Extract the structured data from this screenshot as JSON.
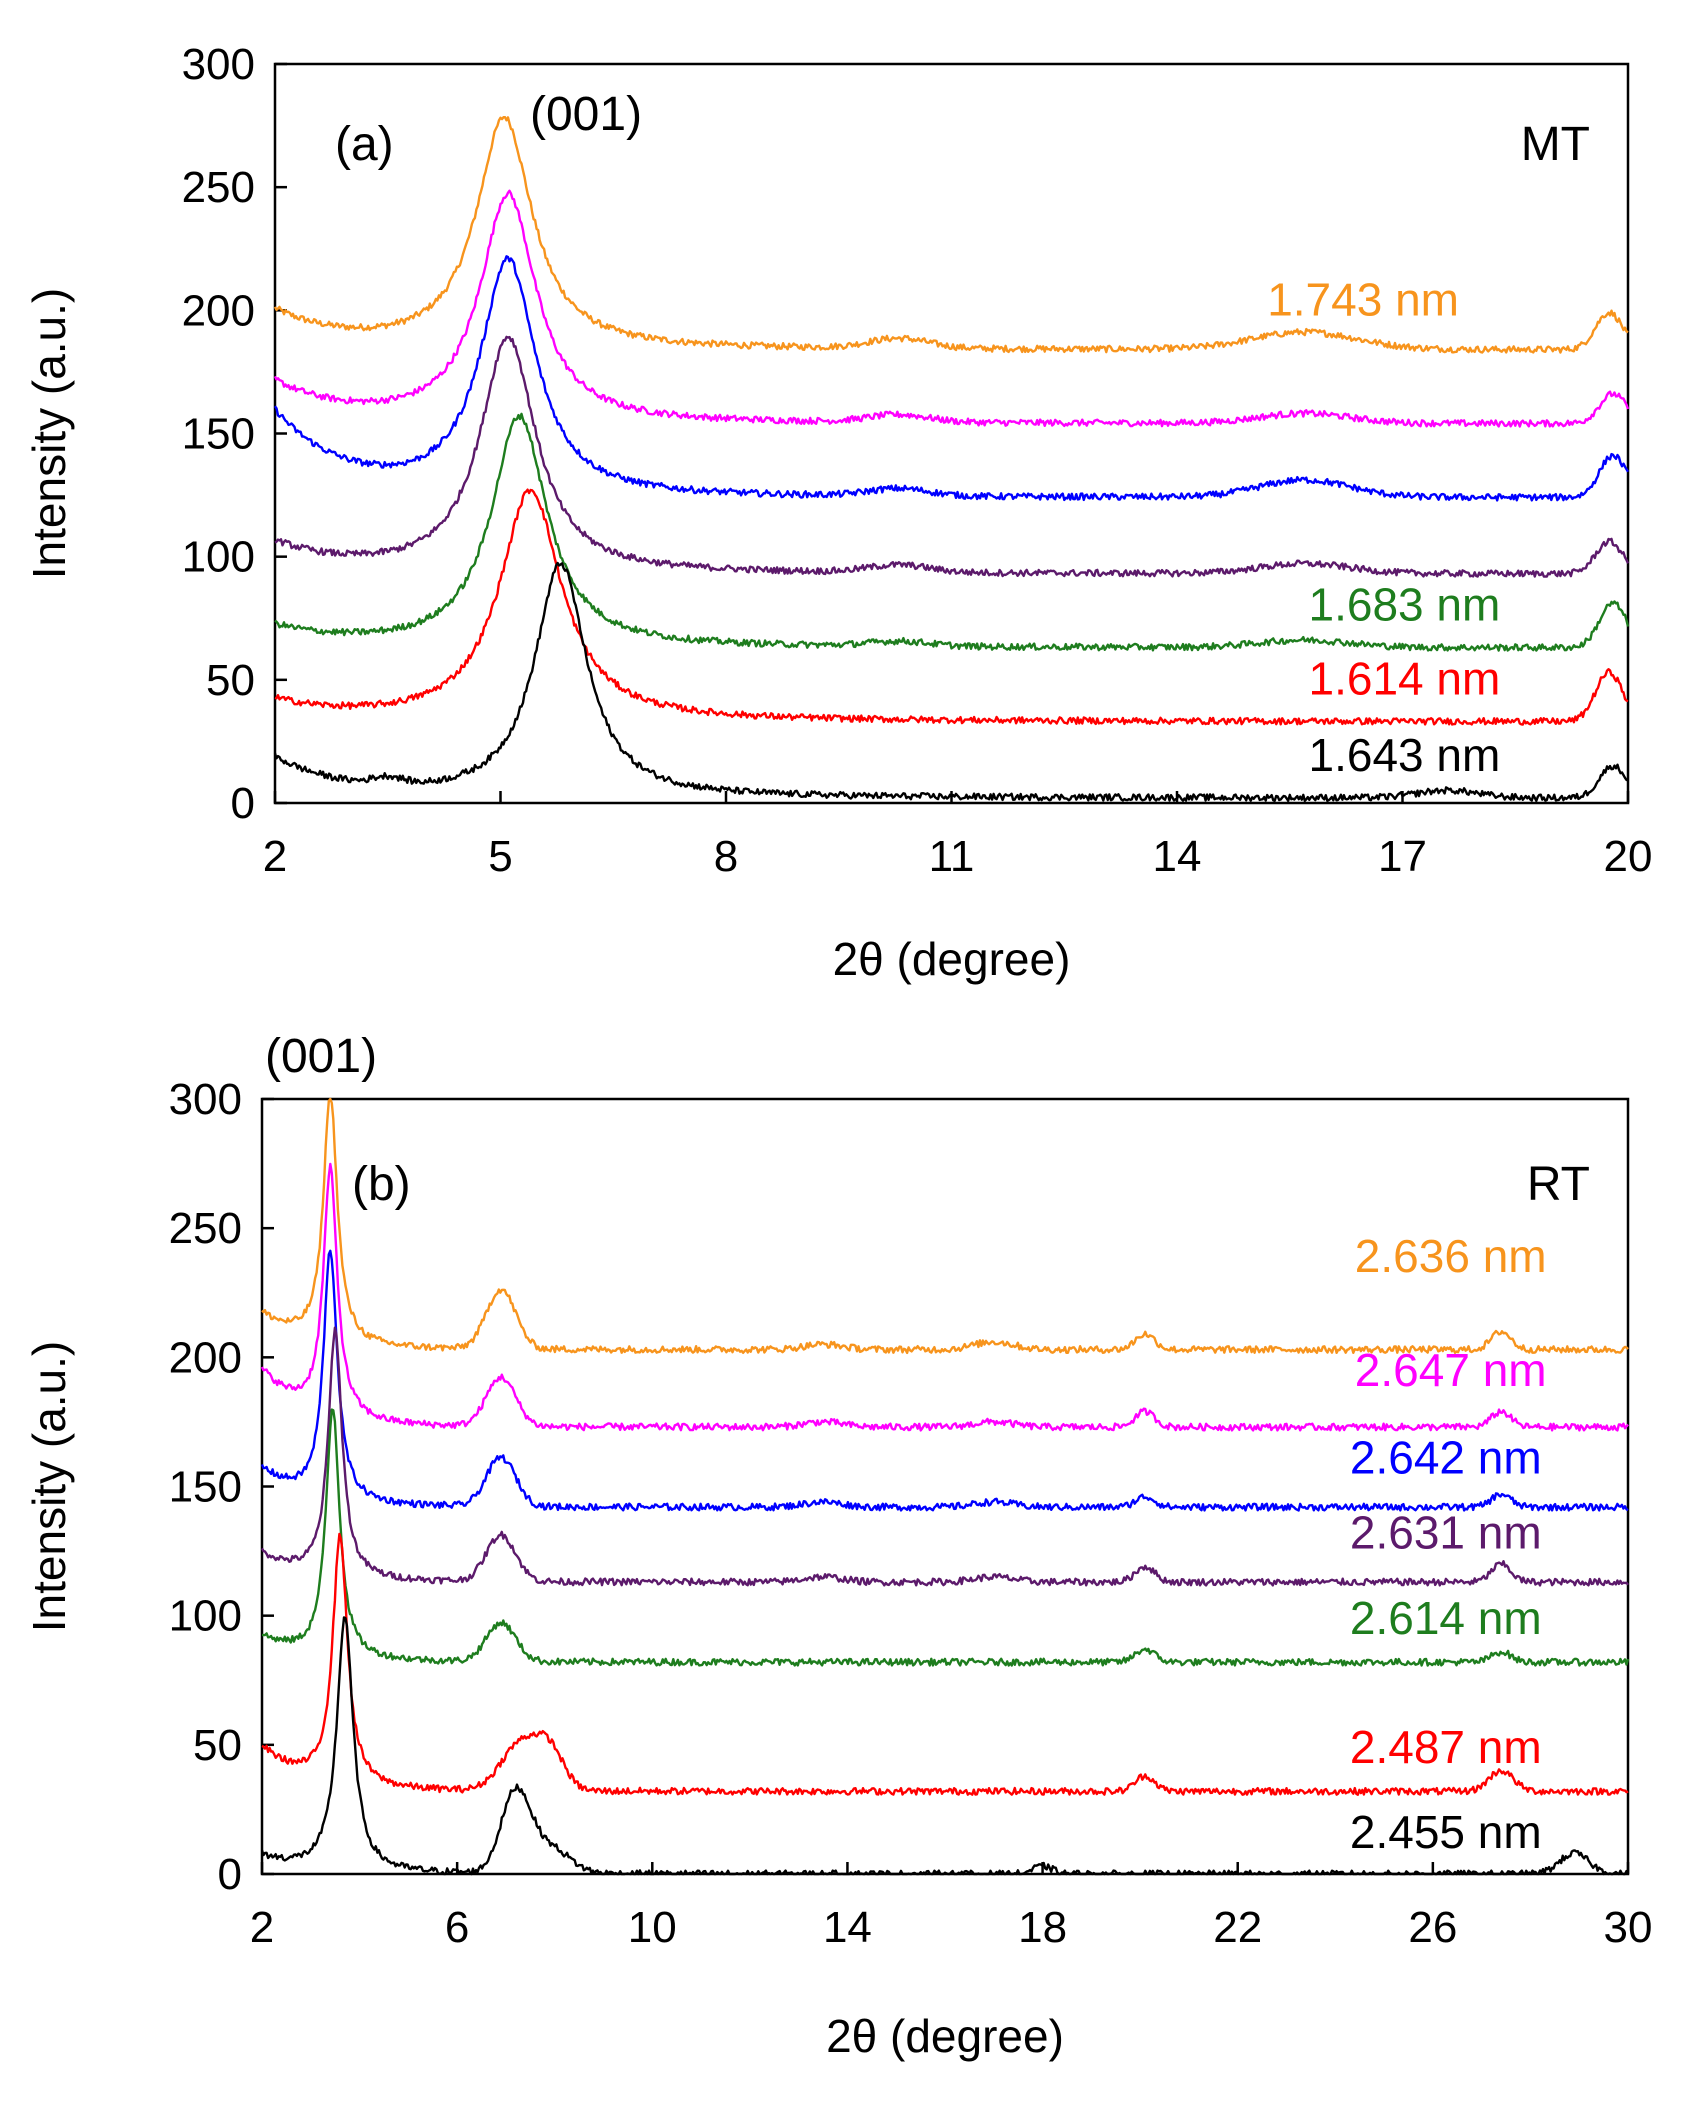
{
  "figure": {
    "colors": {
      "orange": "#f7941d",
      "magenta": "#ff00ff",
      "blue": "#0000ff",
      "purple": "#5c1a6b",
      "green": "#1e7d1e",
      "red": "#ff0000",
      "black": "#000000"
    }
  },
  "chart_data": [
    {
      "type": "line",
      "panel_label": "(a)",
      "corner_label": "MT",
      "peak_annotation": "(001)",
      "xlabel": "2θ (degree)",
      "ylabel": "Intensity (a.u.)",
      "xlim": [
        2,
        20
      ],
      "ylim": [
        0,
        300
      ],
      "xticks": [
        "2",
        "5",
        "8",
        "11",
        "14",
        "17",
        "20"
      ],
      "yticks": [
        "0",
        "50",
        "100",
        "150",
        "200",
        "250",
        "300"
      ],
      "grid": false,
      "series": [
        {
          "color": "#f7941d",
          "baseline": 184,
          "start": 201,
          "peak_x": 5.05,
          "peak_y": 278,
          "width": 0.45,
          "bumps": [
            [
              10.3,
              4,
              0.4
            ],
            [
              15.7,
              7,
              0.7
            ],
            [
              19.75,
              15,
              0.18
            ]
          ]
        },
        {
          "color": "#ff00ff",
          "baseline": 154,
          "start": 172,
          "peak_x": 5.1,
          "peak_y": 247,
          "width": 0.45,
          "bumps": [
            [
              10.3,
              3,
              0.4
            ],
            [
              15.7,
              4,
              0.6
            ],
            [
              19.8,
              12,
              0.18
            ]
          ]
        },
        {
          "color": "#0000ff",
          "baseline": 124,
          "start": 160,
          "peak_x": 5.1,
          "peak_y": 220,
          "width": 0.45,
          "bumps": [
            [
              10.3,
              3,
              0.4
            ],
            [
              15.7,
              7,
              0.6
            ],
            [
              19.8,
              17,
              0.18
            ]
          ]
        },
        {
          "color": "#5c1a6b",
          "baseline": 93,
          "start": 107,
          "peak_x": 5.1,
          "peak_y": 189,
          "width": 0.45,
          "bumps": [
            [
              10.3,
              3,
              0.4
            ],
            [
              15.7,
              4,
              0.6
            ],
            [
              19.75,
              13,
              0.18
            ]
          ]
        },
        {
          "color": "#1e7d1e",
          "baseline": 63,
          "start": 73,
          "peak_x": 5.25,
          "peak_y": 157,
          "width": 0.45,
          "bumps": [
            [
              10.3,
              2,
              0.4
            ],
            [
              15.7,
              3,
              0.6
            ],
            [
              19.8,
              18,
              0.18
            ]
          ]
        },
        {
          "color": "#ff0000",
          "baseline": 33,
          "start": 43,
          "peak_x": 5.4,
          "peak_y": 127,
          "width": 0.5,
          "bumps": [
            [
              19.75,
              20,
              0.18
            ]
          ]
        },
        {
          "color": "#000000",
          "baseline": 2,
          "start": 19,
          "peak_x": 5.8,
          "peak_y": 97,
          "width": 0.42,
          "bumps": [
            [
              3.5,
              3,
              0.2
            ],
            [
              17.6,
              3,
              0.4
            ],
            [
              19.8,
              13,
              0.18
            ]
          ]
        }
      ],
      "labels": [
        {
          "text": "1.743 nm",
          "color": "#f7941d",
          "x": 15.2,
          "y": 198
        },
        {
          "text": "1.683 nm",
          "color": "#1e7d1e",
          "x": 15.75,
          "y": 74
        },
        {
          "text": "1.614 nm",
          "color": "#ff0000",
          "x": 15.75,
          "y": 44
        },
        {
          "text": "1.643 nm",
          "color": "#000000",
          "x": 15.75,
          "y": 13
        }
      ]
    },
    {
      "type": "line",
      "panel_label": "(b)",
      "corner_label": "RT",
      "peak_annotation": "(001)",
      "xlabel": "2θ (degree)",
      "ylabel": "Intensity (a.u.)",
      "xlim": [
        2,
        30
      ],
      "ylim": [
        0,
        300
      ],
      "xticks": [
        "2",
        "6",
        "10",
        "14",
        "18",
        "22",
        "26",
        "30"
      ],
      "yticks": [
        "0",
        "50",
        "100",
        "150",
        "200",
        "250",
        "300"
      ],
      "grid": false,
      "series": [
        {
          "color": "#f7941d",
          "baseline": 203,
          "start": 218,
          "peak_x": 3.4,
          "peak_y": 300,
          "width": 0.17,
          "bumps": [
            [
              6.9,
              23,
              0.3
            ],
            [
              13.5,
              2,
              0.4
            ],
            [
              17.0,
              3,
              0.4
            ],
            [
              20.1,
              6,
              0.2
            ],
            [
              27.4,
              7,
              0.2
            ]
          ]
        },
        {
          "color": "#ff00ff",
          "baseline": 173,
          "start": 196,
          "peak_x": 3.4,
          "peak_y": 269,
          "width": 0.17,
          "bumps": [
            [
              6.9,
              19,
              0.3
            ],
            [
              13.5,
              2,
              0.4
            ],
            [
              17.0,
              2,
              0.4
            ],
            [
              20.1,
              6,
              0.2
            ],
            [
              27.4,
              6,
              0.2
            ]
          ]
        },
        {
          "color": "#0000ff",
          "baseline": 142,
          "start": 158,
          "peak_x": 3.4,
          "peak_y": 239,
          "width": 0.17,
          "bumps": [
            [
              6.9,
              19,
              0.3
            ],
            [
              13.5,
              2,
              0.4
            ],
            [
              17.0,
              2,
              0.4
            ],
            [
              20.1,
              4,
              0.2
            ],
            [
              27.4,
              5,
              0.2
            ]
          ]
        },
        {
          "color": "#5c1a6b",
          "baseline": 113,
          "start": 125,
          "peak_x": 3.5,
          "peak_y": 209,
          "width": 0.17,
          "bumps": [
            [
              6.9,
              18,
              0.3
            ],
            [
              13.5,
              2,
              0.4
            ],
            [
              17.0,
              2,
              0.4
            ],
            [
              20.1,
              6,
              0.2
            ],
            [
              27.4,
              7,
              0.2
            ]
          ]
        },
        {
          "color": "#1e7d1e",
          "baseline": 82,
          "start": 93,
          "peak_x": 3.45,
          "peak_y": 179,
          "width": 0.17,
          "bumps": [
            [
              6.9,
              15,
              0.3
            ],
            [
              20.1,
              5,
              0.2
            ],
            [
              27.4,
              4,
              0.2
            ]
          ]
        },
        {
          "color": "#ff0000",
          "baseline": 32,
          "start": 50,
          "peak_x": 3.6,
          "peak_y": 129,
          "width": 0.18,
          "bumps": [
            [
              7.3,
              18,
              0.4
            ],
            [
              7.9,
              14,
              0.3
            ],
            [
              20.1,
              6,
              0.2
            ],
            [
              27.4,
              8,
              0.25
            ]
          ]
        },
        {
          "color": "#000000",
          "baseline": 0,
          "start": 8,
          "peak_x": 3.7,
          "peak_y": 99,
          "width": 0.2,
          "bumps": [
            [
              7.2,
              31,
              0.3
            ],
            [
              7.9,
              10,
              0.4
            ],
            [
              18.0,
              3,
              0.2
            ],
            [
              28.9,
              8,
              0.3
            ]
          ]
        }
      ],
      "labels": [
        {
          "text": "2.636 nm",
          "color": "#f7941d",
          "x": 24.4,
          "y": 233
        },
        {
          "text": "2.647 nm",
          "color": "#ff00ff",
          "x": 24.4,
          "y": 189
        },
        {
          "text": "2.642 nm",
          "color": "#0000ff",
          "x": 24.3,
          "y": 155
        },
        {
          "text": "2.631 nm",
          "color": "#5c1a6b",
          "x": 24.3,
          "y": 126
        },
        {
          "text": "2.614 nm",
          "color": "#1e7d1e",
          "x": 24.3,
          "y": 93
        },
        {
          "text": "2.487 nm",
          "color": "#ff0000",
          "x": 24.3,
          "y": 43
        },
        {
          "text": "2.455 nm",
          "color": "#000000",
          "x": 24.3,
          "y": 10
        }
      ]
    }
  ]
}
